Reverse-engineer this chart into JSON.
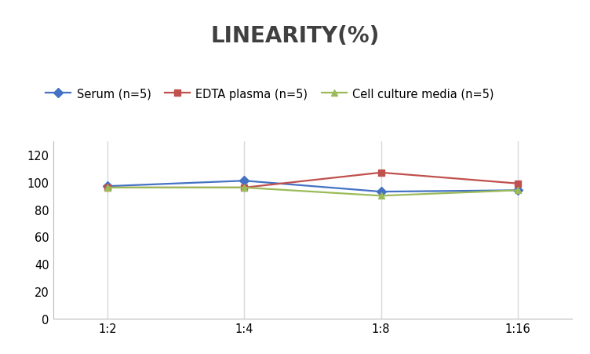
{
  "title": "LINEARITY(%)",
  "x_labels": [
    "1:2",
    "1:4",
    "1:8",
    "1:16"
  ],
  "series": [
    {
      "label": "Serum (n=5)",
      "values": [
        97,
        101,
        93,
        94
      ],
      "color": "#4472C4",
      "marker": "D",
      "markersize": 6,
      "linewidth": 1.6
    },
    {
      "label": "EDTA plasma (n=5)",
      "values": [
        96,
        96,
        107,
        99
      ],
      "color": "#C0504D",
      "marker": "s",
      "markersize": 6,
      "linewidth": 1.6
    },
    {
      "label": "Cell culture media (n=5)",
      "values": [
        96,
        96,
        90,
        94
      ],
      "color": "#9BBB59",
      "marker": "^",
      "markersize": 6,
      "linewidth": 1.6
    }
  ],
  "ylim": [
    0,
    130
  ],
  "yticks": [
    0,
    20,
    40,
    60,
    80,
    100,
    120
  ],
  "grid_color": "#D9D9D9",
  "background_color": "#FFFFFF",
  "title_fontsize": 20,
  "legend_fontsize": 10.5,
  "tick_fontsize": 10.5,
  "title_color": "#404040"
}
